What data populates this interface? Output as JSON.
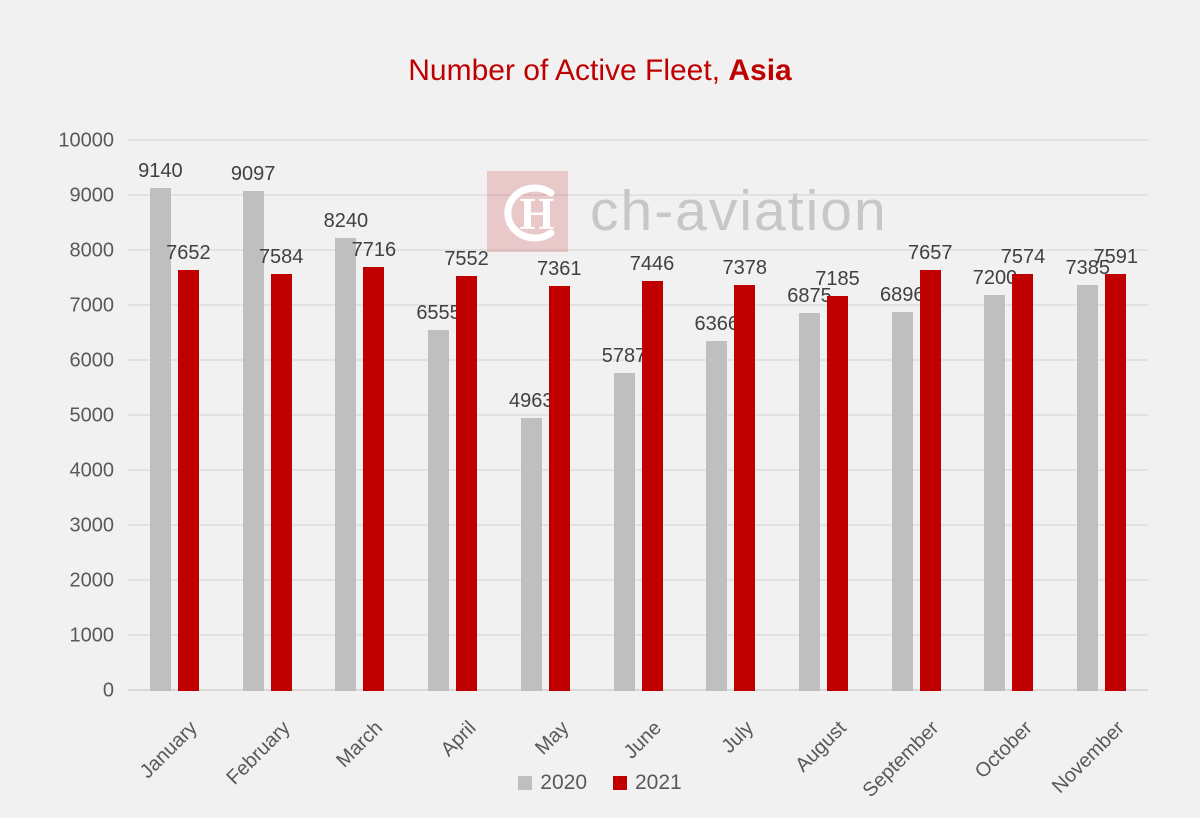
{
  "title": {
    "prefix": "Number of Active Fleet,",
    "region": "Asia"
  },
  "watermark": {
    "brand": "ch-aviation",
    "logo_letter": "H"
  },
  "colors": {
    "background": "#f1f1f1",
    "title": "#c00000",
    "series_2020": "#bfbfbf",
    "series_2021": "#c00000",
    "gridline": "#e2e2e2",
    "axis_text": "#595959",
    "data_label": "#404040"
  },
  "chart_data": {
    "type": "bar",
    "title": "Number of Active Fleet, Asia",
    "categories": [
      "January",
      "February",
      "March",
      "April",
      "May",
      "June",
      "July",
      "August",
      "September",
      "October",
      "November"
    ],
    "series": [
      {
        "name": "2020",
        "color": "#bfbfbf",
        "values": [
          9140,
          9097,
          8240,
          6555,
          4963,
          5787,
          6366,
          6875,
          6896,
          7200,
          7385
        ]
      },
      {
        "name": "2021",
        "color": "#c00000",
        "values": [
          7652,
          7584,
          7716,
          7552,
          7361,
          7446,
          7378,
          7185,
          7657,
          7574,
          7591
        ]
      }
    ],
    "xlabel": "",
    "ylabel": "",
    "ylim": [
      0,
      10000
    ],
    "yticks": [
      0,
      1000,
      2000,
      3000,
      4000,
      5000,
      6000,
      7000,
      8000,
      9000,
      10000
    ],
    "grid": true,
    "data_labels": true,
    "legend_position": "bottom"
  },
  "legend": {
    "items": [
      {
        "label": "2020",
        "color": "#bfbfbf"
      },
      {
        "label": "2021",
        "color": "#c00000"
      }
    ]
  }
}
